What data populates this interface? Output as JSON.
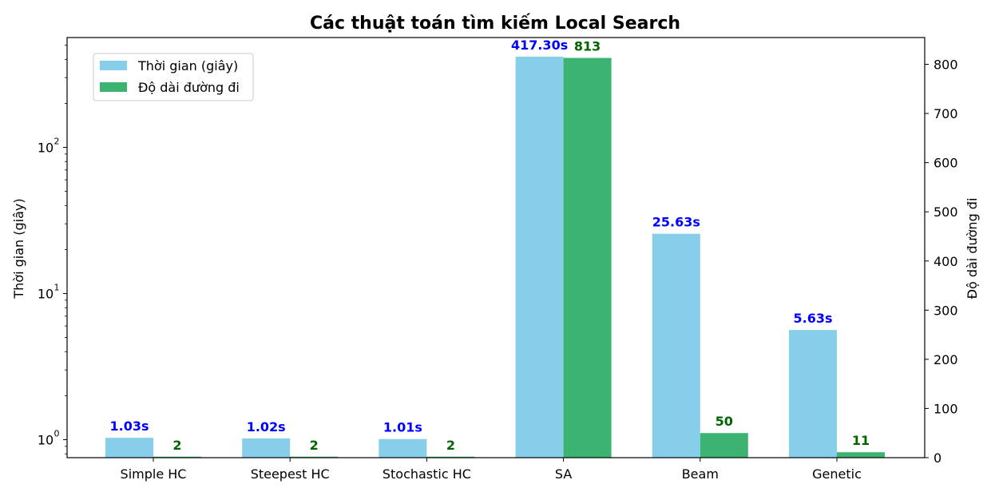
{
  "chart_data": {
    "type": "bar",
    "title": "Các thuật toán tìm kiếm Local Search",
    "categories": [
      "Simple HC",
      "Steepest HC",
      "Stochastic HC",
      "SA",
      "Beam",
      "Genetic"
    ],
    "ylabel_left": "Thời gian (giây)",
    "ylabel_right": "Độ dài đường đi",
    "left_axis": {
      "scale": "log",
      "ticks": [
        1,
        10,
        100
      ],
      "tick_labels": [
        "10",
        "10",
        "10"
      ],
      "tick_exponents": [
        "0",
        "1",
        "2"
      ]
    },
    "right_axis": {
      "scale": "linear",
      "ylim": [
        0,
        850
      ],
      "ticks": [
        0,
        100,
        200,
        300,
        400,
        500,
        600,
        700,
        800
      ]
    },
    "series": [
      {
        "name": "Thời gian (giây)",
        "axis": "left",
        "color": "#87ceeb",
        "values": [
          1.03,
          1.02,
          1.01,
          417.3,
          25.63,
          5.63
        ],
        "labels": [
          "1.03s",
          "1.02s",
          "1.01s",
          "417.30s",
          "25.63s",
          "5.63s"
        ]
      },
      {
        "name": "Độ dài đường đi",
        "axis": "right",
        "color": "#3cb371",
        "values": [
          2,
          2,
          2,
          813,
          50,
          11
        ],
        "labels": [
          "2",
          "2",
          "2",
          "813",
          "50",
          "11"
        ]
      }
    ],
    "legend_position": "upper-left",
    "grid": false
  }
}
